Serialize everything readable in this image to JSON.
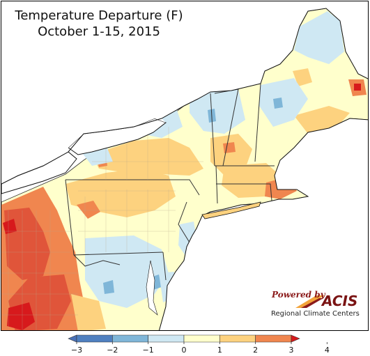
{
  "map": {
    "title": "Temperature Departure (F)",
    "subtitle": "October 1-15, 2015"
  },
  "logo": {
    "powered_by": "Powered by",
    "name": "ACIS",
    "subtitle": "Regional Climate Centers"
  },
  "legend": {
    "bins": [
      {
        "from": -4,
        "to": -3,
        "color": "#4a72b8"
      },
      {
        "from": -3,
        "to": -2,
        "color": "#4f80c0"
      },
      {
        "from": -2,
        "to": -1,
        "color": "#7fb6d8"
      },
      {
        "from": -1,
        "to": 0,
        "color": "#cfe8f3"
      },
      {
        "from": 0,
        "to": 1,
        "color": "#ffffcc"
      },
      {
        "from": 1,
        "to": 2,
        "color": "#fdd27f"
      },
      {
        "from": 2,
        "to": 3,
        "color": "#f0864f"
      },
      {
        "from": 3,
        "to": 4,
        "color": "#d7191c"
      }
    ],
    "tick_labels": [
      "−3",
      "−2",
      "−1",
      "0",
      "1",
      "2",
      "3",
      "4"
    ]
  },
  "colors": {
    "neutral": "#ffffcc",
    "warm1": "#fdd27f",
    "warm2": "#f0864f",
    "warm3": "#d7191c",
    "cool1": "#cfe8f3",
    "cool2": "#7fb6d8",
    "cool3": "#4f80c0",
    "water": "#ffffff"
  }
}
